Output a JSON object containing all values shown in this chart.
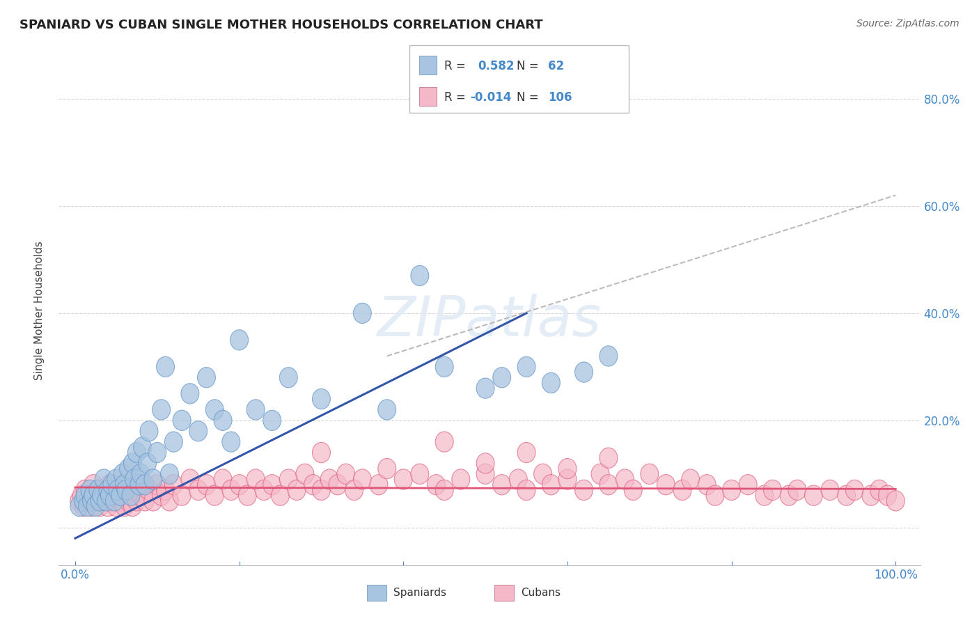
{
  "title": "SPANIARD VS CUBAN SINGLE MOTHER HOUSEHOLDS CORRELATION CHART",
  "source": "Source: ZipAtlas.com",
  "ylabel": "Single Mother Households",
  "spaniard_color": "#a8c4e0",
  "spaniard_edge_color": "#6699cc",
  "cuban_color": "#f5b8c8",
  "cuban_edge_color": "#e06080",
  "spaniard_line_color": "#3355aa",
  "cuban_line_color": "#e05577",
  "dash_line_color": "#bbbbbb",
  "R_spaniard": 0.582,
  "N_spaniard": 62,
  "R_cuban": -0.014,
  "N_cuban": 106,
  "legend_label_spaniard": "Spaniards",
  "legend_label_cuban": "Cubans",
  "watermark": "ZIPatlas",
  "background_color": "#ffffff",
  "grid_color": "#cccccc",
  "title_color": "#222222",
  "axis_label_color": "#4488cc",
  "spaniard_x": [
    0.005,
    0.01,
    0.012,
    0.015,
    0.018,
    0.02,
    0.022,
    0.025,
    0.028,
    0.03,
    0.032,
    0.035,
    0.038,
    0.04,
    0.042,
    0.045,
    0.048,
    0.05,
    0.052,
    0.055,
    0.058,
    0.06,
    0.062,
    0.065,
    0.068,
    0.07,
    0.072,
    0.075,
    0.078,
    0.08,
    0.082,
    0.085,
    0.088,
    0.09,
    0.095,
    0.1,
    0.105,
    0.11,
    0.115,
    0.12,
    0.13,
    0.14,
    0.15,
    0.16,
    0.17,
    0.18,
    0.19,
    0.2,
    0.22,
    0.24,
    0.26,
    0.3,
    0.35,
    0.38,
    0.42,
    0.45,
    0.5,
    0.52,
    0.55,
    0.58,
    0.62,
    0.65
  ],
  "spaniard_y": [
    0.04,
    0.05,
    0.06,
    0.04,
    0.07,
    0.05,
    0.06,
    0.04,
    0.07,
    0.05,
    0.06,
    0.09,
    0.05,
    0.07,
    0.06,
    0.08,
    0.05,
    0.09,
    0.07,
    0.06,
    0.1,
    0.08,
    0.07,
    0.11,
    0.06,
    0.12,
    0.09,
    0.14,
    0.08,
    0.1,
    0.15,
    0.08,
    0.12,
    0.18,
    0.09,
    0.14,
    0.22,
    0.3,
    0.1,
    0.16,
    0.2,
    0.25,
    0.18,
    0.28,
    0.22,
    0.2,
    0.16,
    0.35,
    0.22,
    0.2,
    0.28,
    0.24,
    0.4,
    0.22,
    0.47,
    0.3,
    0.26,
    0.28,
    0.3,
    0.27,
    0.29,
    0.32
  ],
  "cuban_x": [
    0.005,
    0.008,
    0.01,
    0.012,
    0.015,
    0.018,
    0.02,
    0.022,
    0.025,
    0.028,
    0.03,
    0.032,
    0.035,
    0.038,
    0.04,
    0.042,
    0.045,
    0.048,
    0.05,
    0.052,
    0.055,
    0.058,
    0.06,
    0.062,
    0.065,
    0.068,
    0.07,
    0.072,
    0.075,
    0.08,
    0.085,
    0.09,
    0.095,
    0.1,
    0.105,
    0.11,
    0.115,
    0.12,
    0.13,
    0.14,
    0.15,
    0.16,
    0.17,
    0.18,
    0.19,
    0.2,
    0.21,
    0.22,
    0.23,
    0.24,
    0.25,
    0.26,
    0.27,
    0.28,
    0.29,
    0.3,
    0.31,
    0.32,
    0.33,
    0.34,
    0.35,
    0.37,
    0.38,
    0.4,
    0.42,
    0.44,
    0.45,
    0.47,
    0.5,
    0.52,
    0.54,
    0.55,
    0.57,
    0.58,
    0.6,
    0.62,
    0.64,
    0.65,
    0.67,
    0.68,
    0.7,
    0.72,
    0.74,
    0.75,
    0.77,
    0.78,
    0.8,
    0.82,
    0.84,
    0.85,
    0.87,
    0.88,
    0.9,
    0.92,
    0.94,
    0.95,
    0.97,
    0.98,
    0.99,
    1.0,
    0.3,
    0.45,
    0.5,
    0.55,
    0.6,
    0.65
  ],
  "cuban_y": [
    0.05,
    0.06,
    0.04,
    0.07,
    0.05,
    0.06,
    0.04,
    0.08,
    0.05,
    0.06,
    0.04,
    0.07,
    0.05,
    0.06,
    0.04,
    0.08,
    0.05,
    0.06,
    0.04,
    0.07,
    0.05,
    0.06,
    0.04,
    0.08,
    0.05,
    0.06,
    0.04,
    0.07,
    0.05,
    0.06,
    0.05,
    0.07,
    0.05,
    0.08,
    0.06,
    0.07,
    0.05,
    0.08,
    0.06,
    0.09,
    0.07,
    0.08,
    0.06,
    0.09,
    0.07,
    0.08,
    0.06,
    0.09,
    0.07,
    0.08,
    0.06,
    0.09,
    0.07,
    0.1,
    0.08,
    0.07,
    0.09,
    0.08,
    0.1,
    0.07,
    0.09,
    0.08,
    0.11,
    0.09,
    0.1,
    0.08,
    0.07,
    0.09,
    0.1,
    0.08,
    0.09,
    0.07,
    0.1,
    0.08,
    0.09,
    0.07,
    0.1,
    0.08,
    0.09,
    0.07,
    0.1,
    0.08,
    0.07,
    0.09,
    0.08,
    0.06,
    0.07,
    0.08,
    0.06,
    0.07,
    0.06,
    0.07,
    0.06,
    0.07,
    0.06,
    0.07,
    0.06,
    0.07,
    0.06,
    0.05,
    0.14,
    0.16,
    0.12,
    0.14,
    0.11,
    0.13
  ],
  "spaniard_line_x": [
    0.0,
    0.55
  ],
  "spaniard_line_y": [
    -0.02,
    0.4
  ],
  "cuban_line_x": [
    0.0,
    1.0
  ],
  "cuban_line_y": [
    0.075,
    0.072
  ],
  "dash_line_x": [
    0.38,
    1.0
  ],
  "dash_line_y": [
    0.32,
    0.62
  ],
  "xlim": [
    -0.02,
    1.03
  ],
  "ylim": [
    -0.07,
    0.88
  ],
  "xticks": [
    0.0,
    0.2,
    0.4,
    0.6,
    0.8,
    1.0
  ],
  "xticklabels": [
    "0.0%",
    "",
    "",
    "",
    "",
    "100.0%"
  ],
  "yticks": [
    0.0,
    0.2,
    0.4,
    0.6,
    0.8
  ],
  "yticklabels": [
    "",
    "20.0%",
    "40.0%",
    "60.0%",
    "80.0%"
  ]
}
